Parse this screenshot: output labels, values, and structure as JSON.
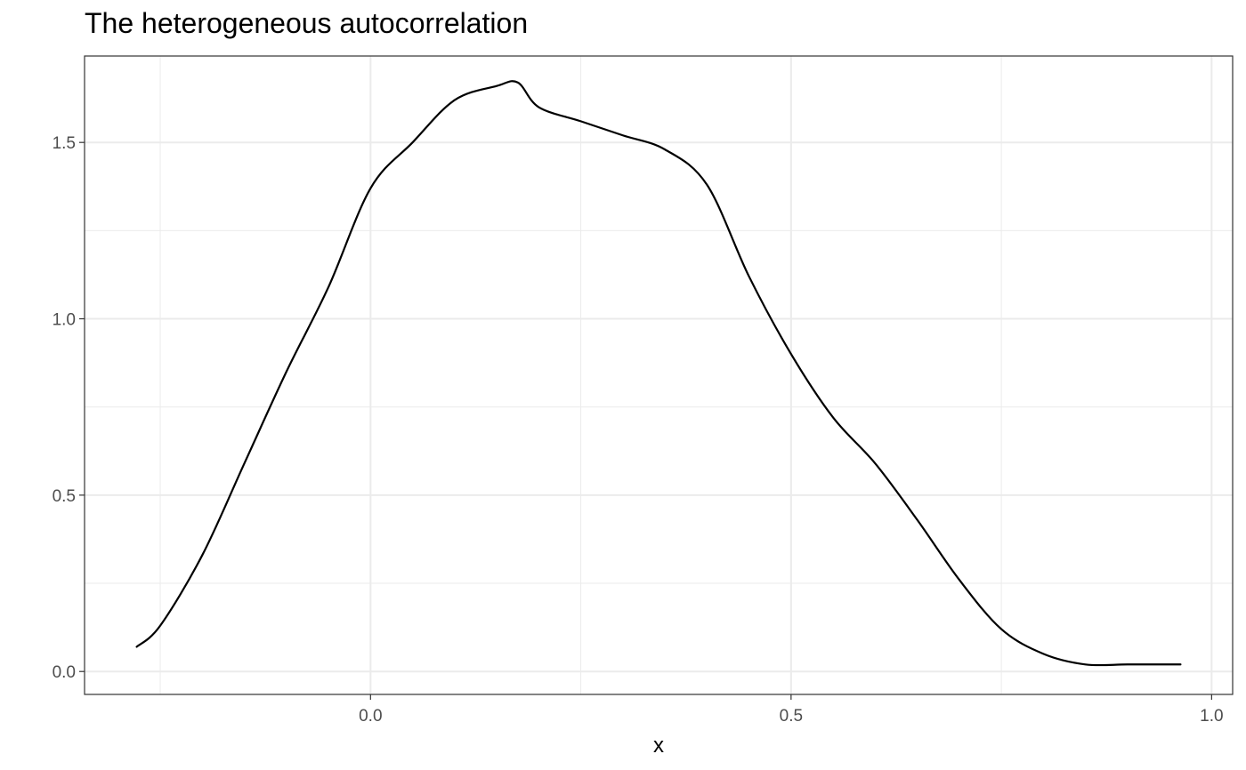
{
  "chart_data": {
    "type": "line",
    "title": "The heterogeneous autocorrelation",
    "xlabel": "x",
    "ylabel": "",
    "xlim": [
      -0.34,
      1.025
    ],
    "ylim": [
      -0.065,
      1.745
    ],
    "x_ticks": [
      0.0,
      0.5,
      1.0
    ],
    "x_tick_labels": [
      "0.0",
      "0.5",
      "1.0"
    ],
    "y_ticks": [
      0.0,
      0.5,
      1.0,
      1.5
    ],
    "y_tick_labels": [
      "0.0",
      "0.5",
      "1.0",
      "1.5"
    ],
    "x_minor_ticks": [
      -0.25,
      0.25,
      0.75
    ],
    "y_minor_ticks": [
      0.25,
      0.75,
      1.25
    ],
    "grid": true,
    "legend": "none",
    "theme": "bw",
    "line_color": "#000000",
    "series": [
      {
        "x": [
          -0.278,
          -0.25,
          -0.2,
          -0.15,
          -0.1,
          -0.05,
          0.0,
          0.05,
          0.1,
          0.15,
          0.175,
          0.2,
          0.25,
          0.3,
          0.35,
          0.4,
          0.45,
          0.5,
          0.55,
          0.6,
          0.65,
          0.7,
          0.75,
          0.8,
          0.85,
          0.9,
          0.95,
          0.963
        ],
        "y": [
          0.07,
          0.13,
          0.33,
          0.59,
          0.85,
          1.09,
          1.37,
          1.5,
          1.62,
          1.66,
          1.67,
          1.6,
          1.56,
          1.52,
          1.48,
          1.38,
          1.12,
          0.9,
          0.72,
          0.59,
          0.43,
          0.26,
          0.12,
          0.05,
          0.02,
          0.02,
          0.02,
          0.02
        ]
      }
    ]
  }
}
